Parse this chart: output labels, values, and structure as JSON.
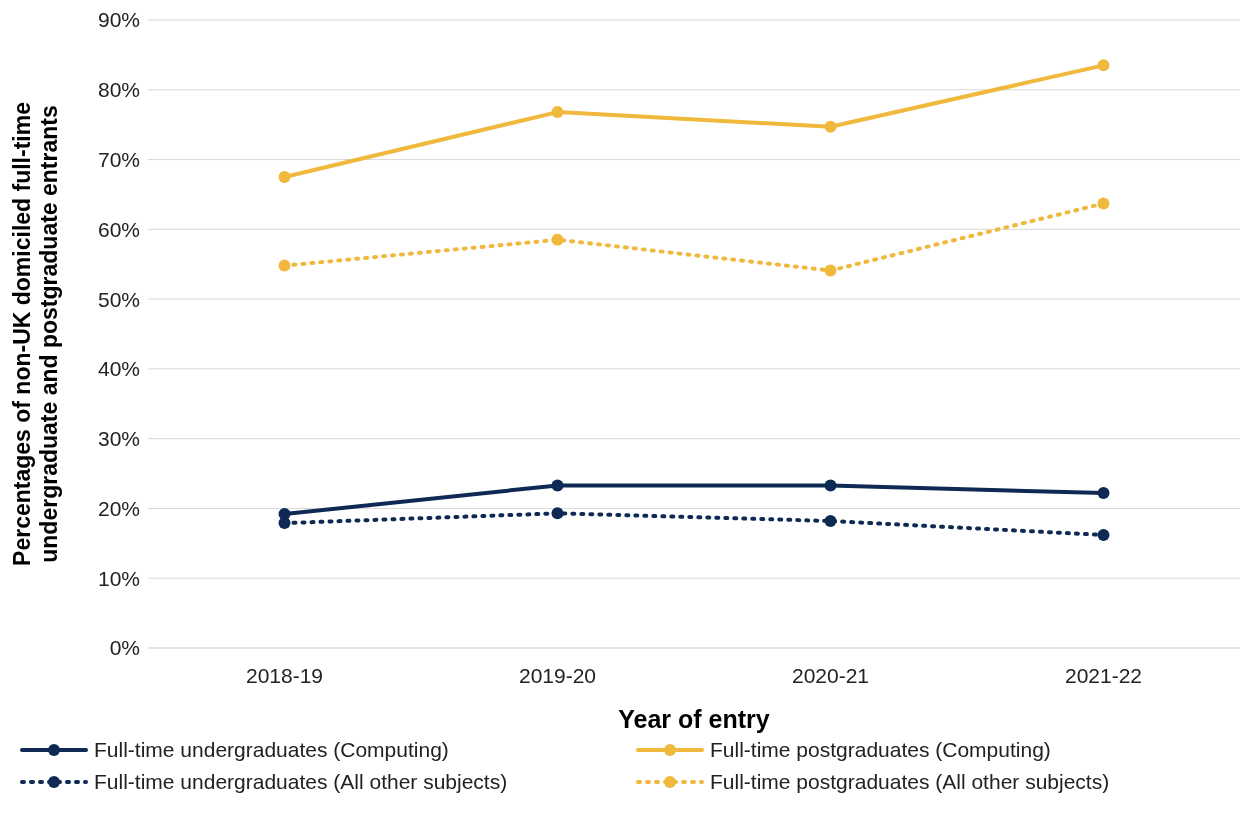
{
  "chart_data": {
    "type": "line",
    "xlabel": "Year of entry",
    "ylabel": "Percentages of non-UK domiciled full-time undergraduate and postgraduate entrants",
    "categories": [
      "2018-19",
      "2019-20",
      "2020-21",
      "2021-22"
    ],
    "series": [
      {
        "name": "Full-time undergraduates (Computing)",
        "color": "#0e2a54",
        "line_style": "solid",
        "values": [
          19.2,
          23.3,
          23.3,
          22.2
        ]
      },
      {
        "name": "Full-time postgraduates (Computing)",
        "color": "#f0b83c",
        "line_style": "solid",
        "values": [
          67.5,
          76.8,
          74.7,
          83.5
        ]
      },
      {
        "name": "Full-time undergraduates (All other subjects)",
        "color": "#0e2a54",
        "line_style": "dotted",
        "values": [
          17.9,
          19.3,
          18.2,
          16.2
        ]
      },
      {
        "name": "Full-time postgraduates (All other subjects)",
        "color": "#f0b83c",
        "line_style": "dotted",
        "values": [
          54.8,
          58.5,
          54.1,
          63.7
        ]
      }
    ],
    "ylim": [
      0,
      90
    ],
    "yticks": [
      {
        "value": 0,
        "label": "0%"
      },
      {
        "value": 10,
        "label": "10%"
      },
      {
        "value": 20,
        "label": "20%"
      },
      {
        "value": 30,
        "label": "30%"
      },
      {
        "value": 40,
        "label": "40%"
      },
      {
        "value": 50,
        "label": "50%"
      },
      {
        "value": 60,
        "label": "60%"
      },
      {
        "value": 70,
        "label": "70%"
      },
      {
        "value": 80,
        "label": "80%"
      },
      {
        "value": 90,
        "label": "90%"
      }
    ],
    "grid": "y",
    "legend": "bottom",
    "marker": "circle"
  }
}
